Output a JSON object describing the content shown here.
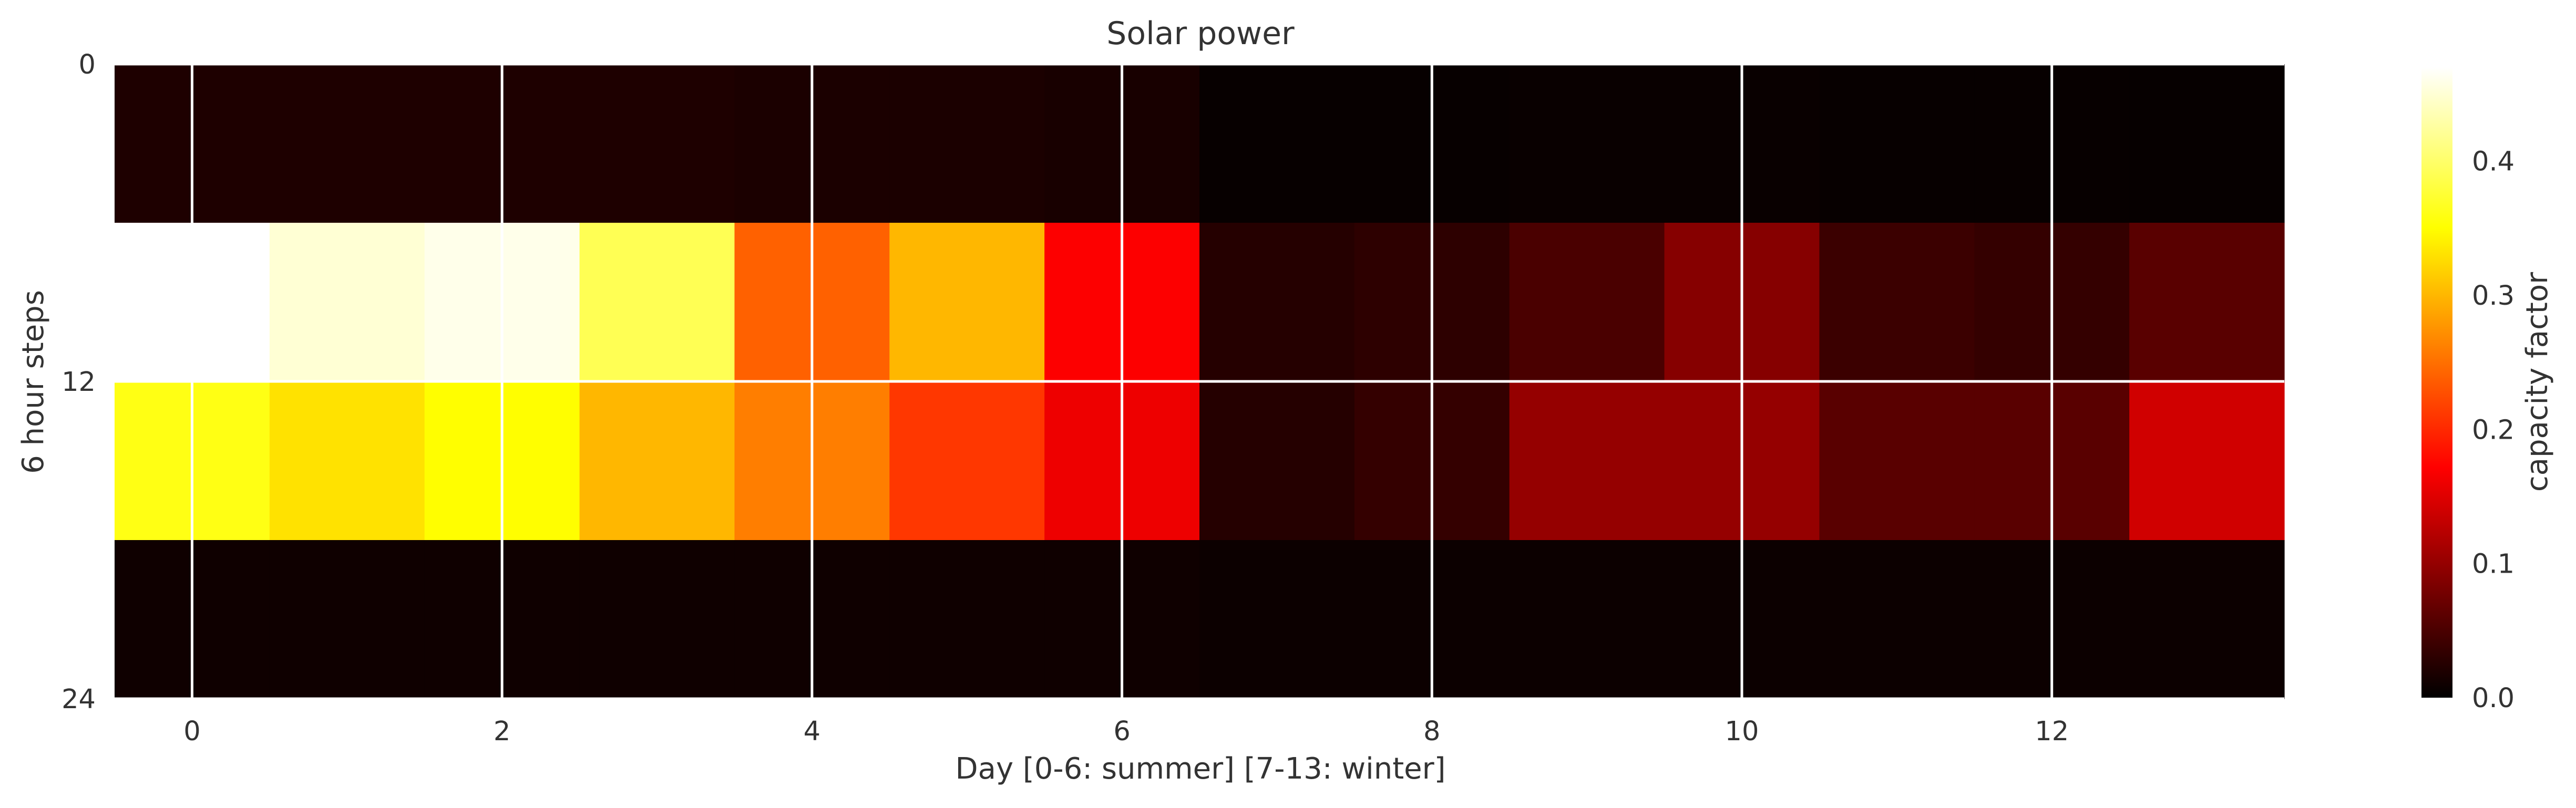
{
  "chart_data": {
    "type": "heatmap",
    "title": "Solar power",
    "xlabel": "Day [0-6: summer] [7-13: winter]",
    "ylabel": "6 hour steps",
    "colorbar_label": "capacity factor",
    "colormap": "hot",
    "x": [
      0,
      1,
      2,
      3,
      4,
      5,
      6,
      7,
      8,
      9,
      10,
      11,
      12,
      13
    ],
    "y_bins": [
      [
        0,
        6
      ],
      [
        6,
        12
      ],
      [
        12,
        18
      ],
      [
        18,
        24
      ]
    ],
    "values": [
      [
        0.02,
        0.02,
        0.02,
        0.02,
        0.018,
        0.018,
        0.016,
        0.005,
        0.005,
        0.006,
        0.006,
        0.005,
        0.005,
        0.004
      ],
      [
        0.47,
        0.45,
        0.46,
        0.39,
        0.24,
        0.3,
        0.17,
        0.025,
        0.03,
        0.05,
        0.09,
        0.04,
        0.035,
        0.06
      ],
      [
        0.36,
        0.33,
        0.35,
        0.3,
        0.26,
        0.21,
        0.16,
        0.025,
        0.035,
        0.1,
        0.1,
        0.06,
        0.06,
        0.14
      ],
      [
        0.01,
        0.01,
        0.01,
        0.01,
        0.01,
        0.01,
        0.01,
        0.008,
        0.008,
        0.008,
        0.008,
        0.008,
        0.008,
        0.008
      ]
    ],
    "xlim": [
      -0.5,
      13.5
    ],
    "ylim": [
      24,
      0
    ],
    "x_ticks": [
      0,
      2,
      4,
      6,
      8,
      10,
      12
    ],
    "x_tick_labels": [
      "0",
      "2",
      "4",
      "6",
      "8",
      "10",
      "12"
    ],
    "y_ticks": [
      0,
      12,
      24
    ],
    "y_tick_labels": [
      "0",
      "12",
      "24"
    ],
    "colorbar_range": [
      0,
      0.47
    ],
    "colorbar_ticks": [
      0,
      0.1,
      0.2,
      0.3,
      0.4
    ],
    "colorbar_tick_labels": [
      "0.0",
      "0.1",
      "0.2",
      "0.3",
      "0.4"
    ],
    "grid": true,
    "grid_color": "#ffffff"
  }
}
